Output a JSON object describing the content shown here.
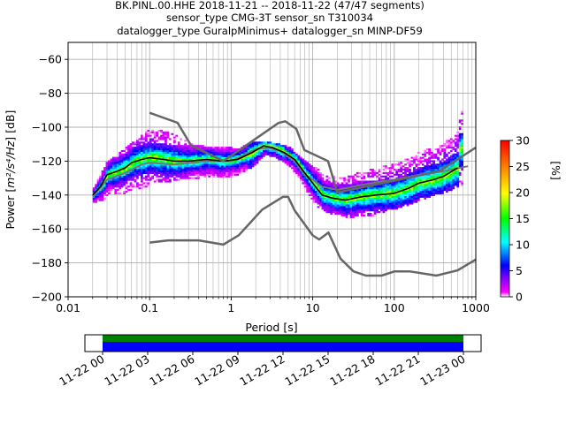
{
  "chart_data": {
    "type": "heatmap",
    "title_lines": [
      "BK.PINL.00.HHE   2018-11-21 -- 2018-11-22  (47/47 segments)",
      "sensor_type CMG-3T sensor_sn T310034",
      "datalogger_type GuralpMinimus+ datalogger_sn MINP-DF59"
    ],
    "xlabel": "Period [s]",
    "ylabel_main": "Power [",
    "ylabel_unit": "m²/s⁴/Hz",
    "ylabel_end": "] [dB]",
    "x_scale": "log",
    "xlim": [
      0.01,
      1000
    ],
    "ylim": [
      -200,
      -50
    ],
    "x_ticks": [
      {
        "value": 0.01,
        "label": "0.01"
      },
      {
        "value": 0.1,
        "label": "0.1"
      },
      {
        "value": 1,
        "label": "1"
      },
      {
        "value": 10,
        "label": "10"
      },
      {
        "value": 100,
        "label": "100"
      },
      {
        "value": 1000,
        "label": "1000"
      }
    ],
    "y_ticks": [
      {
        "value": -60,
        "label": "−60"
      },
      {
        "value": -80,
        "label": "−80"
      },
      {
        "value": -100,
        "label": "−100"
      },
      {
        "value": -120,
        "label": "−120"
      },
      {
        "value": -140,
        "label": "−140"
      },
      {
        "value": -160,
        "label": "−160"
      },
      {
        "value": -180,
        "label": "−180"
      },
      {
        "value": -200,
        "label": "−200"
      }
    ],
    "grid": true,
    "colorbar": {
      "label": "[%]",
      "range": [
        0,
        30
      ],
      "ticks": [
        {
          "value": 0,
          "label": "0"
        },
        {
          "value": 5,
          "label": "5"
        },
        {
          "value": 10,
          "label": "10"
        },
        {
          "value": 15,
          "label": "15"
        },
        {
          "value": 20,
          "label": "20"
        },
        {
          "value": 25,
          "label": "25"
        },
        {
          "value": 30,
          "label": "30"
        }
      ]
    },
    "noise_models": {
      "new_high_noise_model": {
        "color": "#666666",
        "points": [
          [
            0.1,
            -91.5
          ],
          [
            0.22,
            -97.4
          ],
          [
            0.32,
            -110.5
          ],
          [
            0.8,
            -120
          ],
          [
            3.8,
            -97.5
          ],
          [
            4.6,
            -96.5
          ],
          [
            6.3,
            -101
          ],
          [
            7.9,
            -113.5
          ],
          [
            15.4,
            -120
          ],
          [
            20,
            -138.5
          ],
          [
            354.8,
            -126
          ],
          [
            1000,
            -112
          ]
        ]
      },
      "new_low_noise_model": {
        "color": "#666666",
        "points": [
          [
            0.1,
            -168
          ],
          [
            0.17,
            -166.7
          ],
          [
            0.4,
            -166.7
          ],
          [
            0.8,
            -169.2
          ],
          [
            1.24,
            -163.7
          ],
          [
            2.4,
            -148.6
          ],
          [
            4.3,
            -141.1
          ],
          [
            5,
            -141.1
          ],
          [
            6,
            -149
          ],
          [
            10,
            -163.8
          ],
          [
            12,
            -166.2
          ],
          [
            15.6,
            -162.1
          ],
          [
            21.9,
            -177.5
          ],
          [
            31.6,
            -185
          ],
          [
            45,
            -187.5
          ],
          [
            70,
            -187.5
          ],
          [
            101,
            -185
          ],
          [
            154,
            -185
          ],
          [
            328,
            -187.5
          ],
          [
            600,
            -184.4
          ],
          [
            1000,
            -178
          ]
        ]
      },
      "mode": {
        "color": "#000000",
        "points": [
          [
            0.02,
            -140
          ],
          [
            0.025,
            -135
          ],
          [
            0.03,
            -128
          ],
          [
            0.04,
            -126
          ],
          [
            0.05,
            -124
          ],
          [
            0.06,
            -121
          ],
          [
            0.08,
            -119
          ],
          [
            0.1,
            -118
          ],
          [
            0.15,
            -119
          ],
          [
            0.2,
            -120
          ],
          [
            0.3,
            -120
          ],
          [
            0.5,
            -119
          ],
          [
            0.8,
            -120
          ],
          [
            1.2,
            -119
          ],
          [
            1.8,
            -115
          ],
          [
            2.5,
            -111
          ],
          [
            3.2,
            -112
          ],
          [
            4.5,
            -115
          ],
          [
            6,
            -119
          ],
          [
            8,
            -127
          ],
          [
            10,
            -133
          ],
          [
            13,
            -140
          ],
          [
            18,
            -142
          ],
          [
            25,
            -143
          ],
          [
            40,
            -141
          ],
          [
            60,
            -140
          ],
          [
            100,
            -139
          ],
          [
            150,
            -136
          ],
          [
            200,
            -133
          ],
          [
            300,
            -131
          ],
          [
            400,
            -129
          ],
          [
            600,
            -124
          ]
        ]
      },
      "mean": {
        "color": "#777777",
        "points": [
          [
            0.02,
            -141
          ],
          [
            0.03,
            -131
          ],
          [
            0.05,
            -127
          ],
          [
            0.08,
            -122
          ],
          [
            0.1,
            -121
          ],
          [
            0.2,
            -122
          ],
          [
            0.5,
            -120
          ],
          [
            1,
            -120
          ],
          [
            2,
            -113
          ],
          [
            2.8,
            -112
          ],
          [
            4,
            -114
          ],
          [
            6,
            -120
          ],
          [
            8,
            -128
          ],
          [
            10,
            -131
          ],
          [
            13,
            -135
          ],
          [
            20,
            -137
          ],
          [
            40,
            -134
          ],
          [
            70,
            -132
          ],
          [
            100,
            -131
          ],
          [
            200,
            -128
          ],
          [
            400,
            -126
          ],
          [
            800,
            -123
          ]
        ]
      }
    },
    "psd_band": [
      [
        0.02,
        -144,
        -136
      ],
      [
        0.03,
        -142,
        -120
      ],
      [
        0.05,
        -140,
        -112
      ],
      [
        0.08,
        -138,
        -105
      ],
      [
        0.1,
        -132,
        -100
      ],
      [
        0.15,
        -132,
        -100
      ],
      [
        0.2,
        -131,
        -102
      ],
      [
        0.3,
        -130,
        -110
      ],
      [
        0.5,
        -130,
        -112
      ],
      [
        0.8,
        -130,
        -112
      ],
      [
        1.2,
        -129,
        -113
      ],
      [
        1.8,
        -124,
        -109
      ],
      [
        2.5,
        -118,
        -109
      ],
      [
        3.5,
        -119,
        -110
      ],
      [
        5,
        -124,
        -112
      ],
      [
        7,
        -133,
        -118
      ],
      [
        10,
        -145,
        -124
      ],
      [
        15,
        -150,
        -126
      ],
      [
        20,
        -152,
        -128
      ],
      [
        30,
        -153,
        -126
      ],
      [
        50,
        -152,
        -122
      ],
      [
        100,
        -148,
        -115
      ],
      [
        200,
        -143,
        -108
      ],
      [
        300,
        -140,
        -103
      ],
      [
        500,
        -137,
        -98
      ],
      [
        700,
        -133,
        -89
      ]
    ],
    "timeline": {
      "tick_labels": [
        "11-22 00",
        "11-22 03",
        "11-22 06",
        "11-22 09",
        "11-22 12",
        "11-22 15",
        "11-22 18",
        "11-22 21",
        "11-23 00"
      ],
      "tracks": [
        {
          "color": "#008000",
          "start_hour": 0,
          "end_hour": 24
        },
        {
          "color": "#0000ff",
          "start_hour": 0,
          "end_hour": 24
        }
      ]
    }
  }
}
